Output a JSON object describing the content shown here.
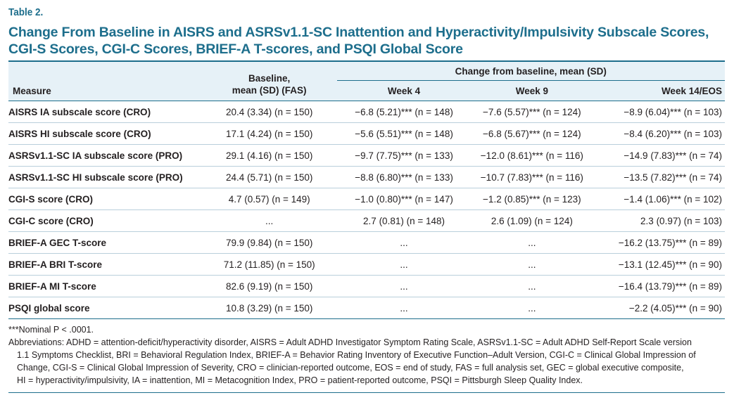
{
  "table_label": "Table 2.",
  "title": "Change From Baseline in AISRS and ASRSv1.1-SC Inattention and Hyperactivity/Impulsivity Subscale Scores, CGI-S Scores, CGI-C Scores, BRIEF-A T-scores, and PSQI Global Score",
  "header": {
    "measure": "Measure",
    "baseline_line1": "Baseline,",
    "baseline_line2": "mean (SD) (FAS)",
    "change": "Change from baseline, mean (SD)",
    "week4": "Week 4",
    "week9": "Week 9",
    "week14": "Week 14/EOS"
  },
  "rows": [
    {
      "measure": "AISRS IA subscale score (CRO)",
      "baseline": "20.4 (3.34) (n = 150)",
      "week4": "−6.8 (5.21)*** (n = 148)",
      "week9": "−7.6 (5.57)*** (n = 124)",
      "week14": "−8.9 (6.04)*** (n = 103)"
    },
    {
      "measure": "AISRS HI subscale score (CRO)",
      "baseline": "17.1 (4.24) (n = 150)",
      "week4": "−5.6 (5.51)*** (n = 148)",
      "week9": "−6.8 (5.67)*** (n = 124)",
      "week14": "−8.4 (6.20)*** (n = 103)"
    },
    {
      "measure": "ASRSv1.1-SC IA subscale score (PRO)",
      "baseline": "29.1 (4.16) (n = 150)",
      "week4": "−9.7 (7.75)*** (n = 133)",
      "week9": "−12.0 (8.61)*** (n = 116)",
      "week14": "−14.9 (7.83)*** (n = 74)"
    },
    {
      "measure": "ASRSv1.1-SC HI subscale score (PRO)",
      "baseline": "24.4 (5.71) (n = 150)",
      "week4": "−8.8 (6.80)*** (n = 133)",
      "week9": "−10.7 (7.83)*** (n = 116)",
      "week14": "−13.5 (7.82)*** (n = 74)"
    },
    {
      "measure": "CGI-S score (CRO)",
      "baseline": "4.7 (0.57) (n = 149)",
      "week4": "−1.0 (0.80)*** (n = 147)",
      "week9": "−1.2 (0.85)*** (n = 123)",
      "week14": "−1.4 (1.06)*** (n = 102)"
    },
    {
      "measure": "CGI-C score (CRO)",
      "baseline": "...",
      "week4": "2.7 (0.81) (n = 148)",
      "week9": "2.6 (1.09) (n = 124)",
      "week14": "2.3 (0.97) (n = 103)"
    },
    {
      "measure": "BRIEF-A GEC T-score",
      "baseline": "79.9 (9.84) (n = 150)",
      "week4": "...",
      "week9": "...",
      "week14": "−16.2 (13.75)*** (n = 89)"
    },
    {
      "measure": "BRIEF-A BRI T-score",
      "baseline": "71.2 (11.85) (n = 150)",
      "week4": "...",
      "week9": "...",
      "week14": "−13.1 (12.45)*** (n = 90)"
    },
    {
      "measure": "BRIEF-A MI T-score",
      "baseline": "82.6 (9.19) (n = 150)",
      "week4": "...",
      "week9": "...",
      "week14": "−16.4 (13.79)*** (n = 89)"
    },
    {
      "measure": "PSQI global score",
      "baseline": "10.8 (3.29) (n = 150)",
      "week4": "...",
      "week9": "...",
      "week14": "−2.2 (4.05)*** (n = 90)"
    }
  ],
  "footnotes": {
    "significance": "***Nominal P < .0001.",
    "abbreviations_line1": "Abbreviations: ADHD = attention-deficit/hyperactivity disorder, AISRS = Adult ADHD Investigator Symptom Rating Scale, ASRSv1.1-SC = Adult ADHD Self-Report Scale version",
    "abbreviations_line2": "1.1 Symptoms Checklist, BRI = Behavioral Regulation Index, BRIEF-A = Behavior Rating Inventory of Executive Function–Adult Version, CGI-C = Clinical Global Impression of",
    "abbreviations_line3": "Change, CGI-S = Clinical Global Impression of Severity, CRO = clinician-reported outcome, EOS = end of study, FAS = full analysis set, GEC = global executive composite,",
    "abbreviations_line4": "HI = hyperactivity/impulsivity, IA = inattention, MI = Metacognition Index, PRO = patient-reported outcome, PSQI = Pittsburgh Sleep Quality Index."
  }
}
